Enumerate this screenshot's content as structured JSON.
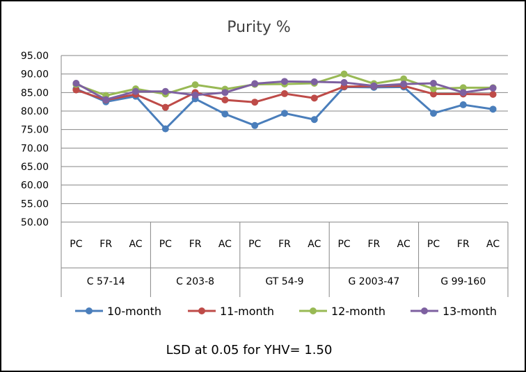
{
  "chart_data": {
    "type": "line",
    "title": "Purity %",
    "ylim": [
      50,
      95
    ],
    "yticks": [
      "50.00",
      "55.00",
      "60.00",
      "65.00",
      "70.00",
      "75.00",
      "80.00",
      "85.00",
      "90.00",
      "95.00"
    ],
    "categories": [
      "PC",
      "FR",
      "AC",
      "PC",
      "FR",
      "AC",
      "PC",
      "FR",
      "AC",
      "PC",
      "FR",
      "AC",
      "PC",
      "FR",
      "AC"
    ],
    "groups": [
      "C 57-14",
      "C 203-8",
      "GT 54-9",
      "G 2003-47",
      "G 99-160"
    ],
    "grid": true,
    "legend_position": "bottom",
    "series": [
      {
        "name": "10-month",
        "color": "#4a7ebb",
        "values": [
          86.0,
          82.5,
          84.0,
          75.2,
          83.3,
          79.2,
          76.1,
          79.4,
          77.7,
          86.5,
          86.4,
          86.5,
          79.4,
          81.7,
          80.5
        ]
      },
      {
        "name": "11-month",
        "color": "#be4b48",
        "values": [
          85.7,
          83.0,
          84.5,
          81.0,
          85.0,
          83.0,
          82.4,
          84.7,
          83.5,
          86.6,
          86.7,
          86.8,
          84.6,
          84.6,
          84.5
        ]
      },
      {
        "name": "12-month",
        "color": "#98b954",
        "values": [
          87.2,
          84.2,
          86.0,
          84.6,
          87.1,
          85.9,
          87.2,
          87.3,
          87.5,
          90.0,
          87.4,
          88.7,
          86.0,
          86.3,
          86.3
        ]
      },
      {
        "name": "13-month",
        "color": "#7d60a0",
        "values": [
          87.5,
          83.1,
          85.3,
          85.3,
          84.3,
          85.0,
          87.4,
          88.0,
          87.9,
          87.7,
          86.8,
          87.3,
          87.5,
          85.0,
          86.2
        ]
      }
    ]
  },
  "note": "LSD at 0.05 for YHV= 1.50"
}
